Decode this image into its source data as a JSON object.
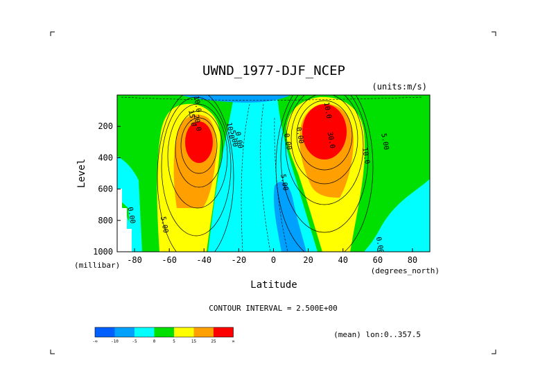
{
  "title": "UWND_1977-DJF_NCEP",
  "units": "(units:m/s)",
  "contour_interval": "CONTOUR INTERVAL = 2.500E+00",
  "mean_note": "(mean) lon:0..357.5",
  "axes": {
    "ylabel": "Level",
    "yunit": "(millibar)",
    "xlabel": "Latitude",
    "xunit": "(degrees_north)"
  },
  "colorbar": {
    "colors": [
      "#0060ff",
      "#00a0ff",
      "#00ffff",
      "#00e000",
      "#ffff00",
      "#ffa000",
      "#ff0000"
    ],
    "labels": [
      "-∞",
      "-10",
      "-5",
      "0",
      "5",
      "15",
      "25",
      "∞"
    ]
  },
  "chart_data": {
    "type": "contour",
    "title": "UWND_1977-DJF_NCEP",
    "xlabel": "Latitude",
    "ylabel": "Level",
    "x_range": [
      -90,
      90
    ],
    "y_range": [
      1000,
      0
    ],
    "x_ticks": [
      -80,
      -60,
      -40,
      -20,
      0,
      20,
      40,
      60,
      80
    ],
    "y_ticks": [
      200,
      400,
      600,
      800,
      1000
    ],
    "contour_interval": 2.5,
    "jets": [
      {
        "lat": -43,
        "level": 220,
        "max": 30
      },
      {
        "lat": 32,
        "level": 200,
        "max": 40
      }
    ],
    "contour_labels": [
      {
        "lat": -48,
        "level": 150,
        "text": "15.0"
      },
      {
        "lat": -45,
        "level": 180,
        "text": "20.0"
      },
      {
        "lat": -26,
        "level": 230,
        "text": "10.0"
      },
      {
        "lat": -24,
        "level": 280,
        "text": "5.00"
      },
      {
        "lat": -21,
        "level": 290,
        "text": "0.00"
      },
      {
        "lat": -45,
        "level": 60,
        "text": "10.0"
      },
      {
        "lat": 5,
        "level": 560,
        "text": "5.00"
      },
      {
        "lat": 7,
        "level": 300,
        "text": "0.00"
      },
      {
        "lat": 14,
        "level": 260,
        "text": "0.00"
      },
      {
        "lat": 32,
        "level": 290,
        "text": "30.0"
      },
      {
        "lat": 30,
        "level": 100,
        "text": "10.0"
      },
      {
        "lat": 52,
        "level": 390,
        "text": "10.0"
      },
      {
        "lat": 63,
        "level": 300,
        "text": "5.00"
      },
      {
        "lat": -83,
        "level": 770,
        "text": "0.00"
      },
      {
        "lat": -64,
        "level": 830,
        "text": "5.00"
      },
      {
        "lat": 60,
        "level": 960,
        "text": "0.00"
      }
    ]
  }
}
